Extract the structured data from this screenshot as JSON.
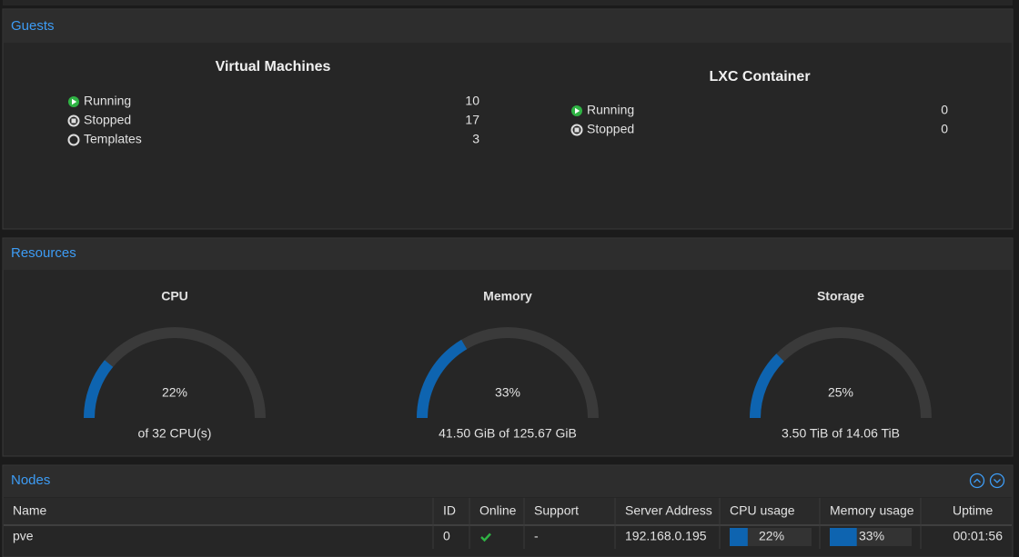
{
  "guests": {
    "title": "Guests",
    "virtual_machines": {
      "title": "Virtual Machines",
      "rows": [
        {
          "label": "Running",
          "count": 10
        },
        {
          "label": "Stopped",
          "count": 17
        },
        {
          "label": "Templates",
          "count": 3
        }
      ]
    },
    "lxc": {
      "title": "LXC Container",
      "rows": [
        {
          "label": "Running",
          "count": 0
        },
        {
          "label": "Stopped",
          "count": 0
        }
      ]
    }
  },
  "resources": {
    "title": "Resources",
    "gauges": [
      {
        "title": "CPU",
        "value": 22,
        "value_label": "22%",
        "detail": "of 32 CPU(s)"
      },
      {
        "title": "Memory",
        "value": 33,
        "value_label": "33%",
        "detail": "41.50 GiB of 125.67 GiB"
      },
      {
        "title": "Storage",
        "value": 25,
        "value_label": "25%",
        "detail": "3.50 TiB of 14.06 TiB"
      }
    ]
  },
  "nodes": {
    "title": "Nodes",
    "columns": [
      "Name",
      "ID",
      "Online",
      "Support",
      "Server Address",
      "CPU usage",
      "Memory usage",
      "Uptime"
    ],
    "rows": [
      {
        "name": "pve",
        "id": 0,
        "support": "-",
        "server_address": "192.168.0.195",
        "cpu_usage": {
          "value": 22,
          "label": "22%"
        },
        "memory_usage": {
          "value": 33,
          "label": "33%"
        },
        "uptime": "00:01:56"
      }
    ]
  }
}
